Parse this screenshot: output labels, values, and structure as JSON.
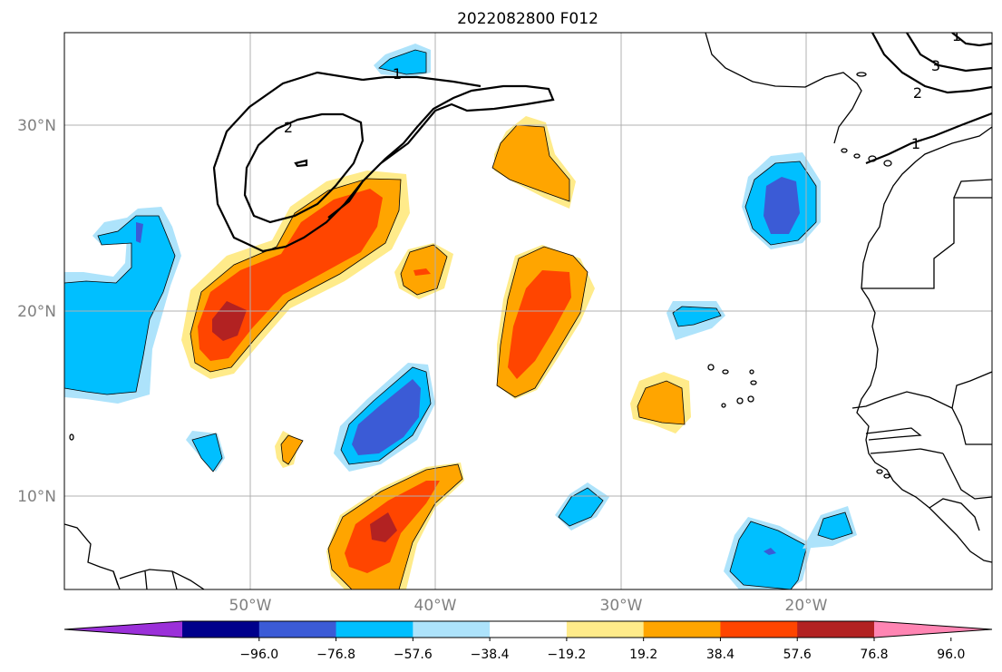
{
  "title": "2022082800 F012",
  "lat_labels": [
    "30°N",
    "20°N",
    "10°N"
  ],
  "lon_labels": [
    "50°W",
    "40°W",
    "30°W",
    "20°W"
  ],
  "contour_labels": [
    "1",
    "2",
    "1",
    "3",
    "2",
    "1"
  ],
  "colorbar": {
    "tick_labels": [
      "−96.0",
      "−76.8",
      "−57.6",
      "−38.4",
      "−19.2",
      "19.2",
      "38.4",
      "57.6",
      "76.8",
      "96.0"
    ],
    "colors": [
      "#9b30d9",
      "#00008b",
      "#3b5bd6",
      "#00bfff",
      "#ade3fb",
      "#ffffff",
      "#ffeb8a",
      "#ffa500",
      "#ff4500",
      "#b22222",
      "#ff85b3"
    ]
  },
  "palette": {
    "neg_light": "#ade3fb",
    "neg_mid": "#00bfff",
    "neg_strong": "#3b5bd6",
    "pos_light": "#ffeb8a",
    "pos_mid": "#ffa500",
    "pos_strong": "#ff4500",
    "pos_extreme": "#b22222"
  }
}
